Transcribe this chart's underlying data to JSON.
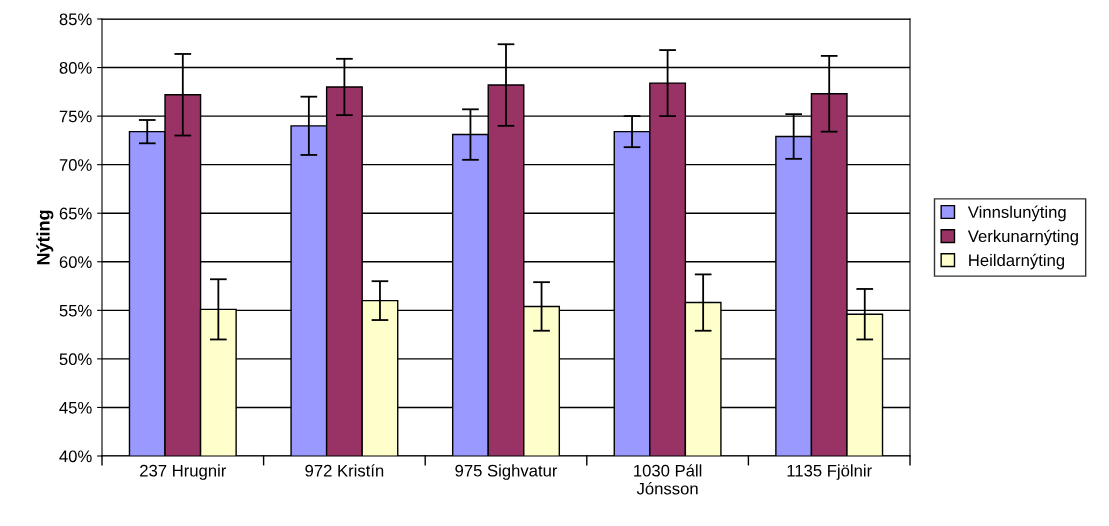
{
  "chart_data": {
    "type": "bar",
    "ylabel": "Nýting",
    "categories": [
      "237 Hrugnir",
      "972 Kristín",
      "975 Sighvatur",
      "1030 Páll\nJónsson",
      "1135 Fjölnir"
    ],
    "series": [
      {
        "name": "Vinnslunýting",
        "color": "#9999ff",
        "values": [
          73.4,
          74.0,
          73.1,
          73.4,
          72.9
        ],
        "errors": [
          1.2,
          3.0,
          2.6,
          1.6,
          2.3
        ]
      },
      {
        "name": "Verkunarnýting",
        "color": "#993366",
        "values": [
          77.2,
          78.0,
          78.2,
          78.4,
          77.3
        ],
        "errors": [
          4.2,
          2.9,
          4.2,
          3.4,
          3.9
        ]
      },
      {
        "name": "Heildarnýting",
        "color": "#ffffcc",
        "values": [
          55.1,
          56.0,
          55.4,
          55.8,
          54.6
        ],
        "errors": [
          3.1,
          2.0,
          2.5,
          2.9,
          2.6
        ]
      }
    ],
    "ylim": [
      40,
      85
    ],
    "yticks": [
      {
        "value": 40,
        "label": "40%"
      },
      {
        "value": 45,
        "label": "45%"
      },
      {
        "value": 50,
        "label": "50%"
      },
      {
        "value": 55,
        "label": "55%"
      },
      {
        "value": 60,
        "label": "60%"
      },
      {
        "value": 65,
        "label": "65%"
      },
      {
        "value": 70,
        "label": "70%"
      },
      {
        "value": 75,
        "label": "75%"
      },
      {
        "value": 80,
        "label": "80%"
      },
      {
        "value": 85,
        "label": "85%"
      }
    ],
    "grid": "y",
    "legend": "right"
  }
}
